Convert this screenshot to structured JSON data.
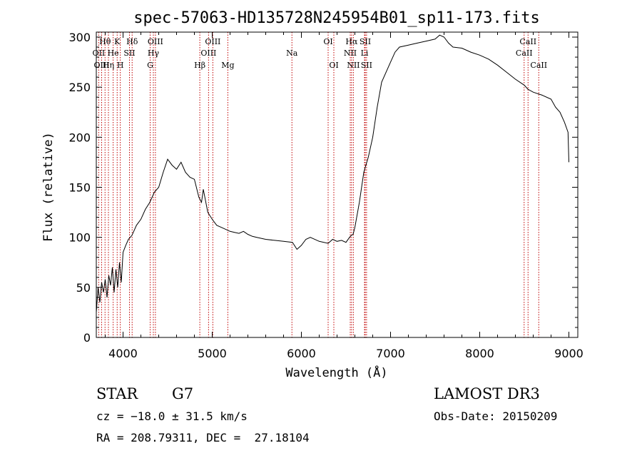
{
  "chart_data": {
    "type": "line",
    "title": "spec-57063-HD135728N245954B01_sp11-173.fits",
    "xlabel": "Wavelength (Å)",
    "ylabel": "Flux (relative)",
    "xlim": [
      3700,
      9100
    ],
    "ylim": [
      0,
      305
    ],
    "xticks": [
      4000,
      5000,
      6000,
      7000,
      8000,
      9000
    ],
    "yticks": [
      0,
      50,
      100,
      150,
      200,
      250,
      300
    ],
    "series": [
      {
        "name": "flux",
        "x": [
          3700,
          3720,
          3740,
          3760,
          3780,
          3800,
          3820,
          3840,
          3860,
          3880,
          3900,
          3920,
          3940,
          3960,
          3980,
          4000,
          4030,
          4060,
          4100,
          4150,
          4200,
          4250,
          4300,
          4350,
          4400,
          4450,
          4500,
          4550,
          4600,
          4650,
          4700,
          4750,
          4800,
          4850,
          4880,
          4900,
          4950,
          5000,
          5050,
          5100,
          5150,
          5200,
          5250,
          5300,
          5350,
          5400,
          5450,
          5500,
          5600,
          5700,
          5800,
          5900,
          5950,
          6000,
          6050,
          6100,
          6200,
          6300,
          6350,
          6400,
          6450,
          6500,
          6540,
          6560,
          6580,
          6600,
          6650,
          6700,
          6750,
          6800,
          6850,
          6900,
          7000,
          7050,
          7100,
          7200,
          7300,
          7400,
          7500,
          7550,
          7600,
          7650,
          7700,
          7800,
          7900,
          8000,
          8100,
          8200,
          8300,
          8400,
          8500,
          8540,
          8600,
          8700,
          8800,
          8850,
          8900,
          8950,
          8990,
          9000
        ],
        "y": [
          25,
          50,
          35,
          55,
          45,
          58,
          40,
          62,
          52,
          70,
          45,
          68,
          50,
          75,
          55,
          85,
          92,
          98,
          102,
          112,
          118,
          128,
          135,
          145,
          150,
          165,
          178,
          172,
          168,
          175,
          165,
          160,
          158,
          140,
          135,
          148,
          125,
          118,
          112,
          110,
          108,
          106,
          105,
          104,
          106,
          103,
          101,
          100,
          98,
          97,
          96,
          95,
          88,
          92,
          98,
          100,
          96,
          94,
          98,
          96,
          97,
          95,
          100,
          102,
          103,
          110,
          135,
          165,
          180,
          200,
          230,
          255,
          275,
          285,
          290,
          292,
          294,
          296,
          298,
          302,
          300,
          294,
          290,
          289,
          285,
          282,
          278,
          272,
          265,
          258,
          252,
          248,
          245,
          242,
          238,
          230,
          225,
          215,
          205,
          175
        ]
      }
    ],
    "lines": [
      {
        "name": "Hθ",
        "x": 3798,
        "row": 1
      },
      {
        "name": "OII",
        "x": 3727,
        "row": 2
      },
      {
        "name": "OIII",
        "x": 3760,
        "row": 3
      },
      {
        "name": "Hη",
        "x": 3836,
        "row": 3
      },
      {
        "name": "He",
        "x": 3889,
        "row": 2
      },
      {
        "name": "K",
        "x": 3934,
        "row": 1
      },
      {
        "name": "H",
        "x": 3969,
        "row": 3
      },
      {
        "name": "SII",
        "x": 4072,
        "row": 2
      },
      {
        "name": "Hδ",
        "x": 4102,
        "row": 1
      },
      {
        "name": "OIII",
        "x": 4363,
        "row": 1
      },
      {
        "name": "Hγ",
        "x": 4340,
        "row": 2
      },
      {
        "name": "G",
        "x": 4304,
        "row": 3
      },
      {
        "name": "Hβ",
        "x": 4861,
        "row": 3
      },
      {
        "name": "OIII",
        "x": 5007,
        "row": 1
      },
      {
        "name": "OIII",
        "x": 4959,
        "row": 2
      },
      {
        "name": "Mg",
        "x": 5175,
        "row": 3
      },
      {
        "name": "Na",
        "x": 5894,
        "row": 2
      },
      {
        "name": "OI",
        "x": 6300,
        "row": 1
      },
      {
        "name": "OI",
        "x": 6364,
        "row": 3
      },
      {
        "name": "Hα",
        "x": 6563,
        "row": 1
      },
      {
        "name": "NII",
        "x": 6548,
        "row": 2
      },
      {
        "name": "NII",
        "x": 6583,
        "row": 3
      },
      {
        "name": "SII",
        "x": 6716,
        "row": 1
      },
      {
        "name": "Li",
        "x": 6708,
        "row": 2
      },
      {
        "name": "SII",
        "x": 6731,
        "row": 3
      },
      {
        "name": "CaII",
        "x": 8542,
        "row": 1
      },
      {
        "name": "CaII",
        "x": 8498,
        "row": 2
      },
      {
        "name": "CaII",
        "x": 8662,
        "row": 3
      }
    ]
  },
  "footer": {
    "object_class": "STAR",
    "subclass": "G7",
    "survey": "LAMOST DR3",
    "redshift": "cz = −18.0 ± 31.5 km/s",
    "obs_date": "Obs-Date: 20150209",
    "coords": "RA = 208.79311, DEC =  27.18104"
  }
}
